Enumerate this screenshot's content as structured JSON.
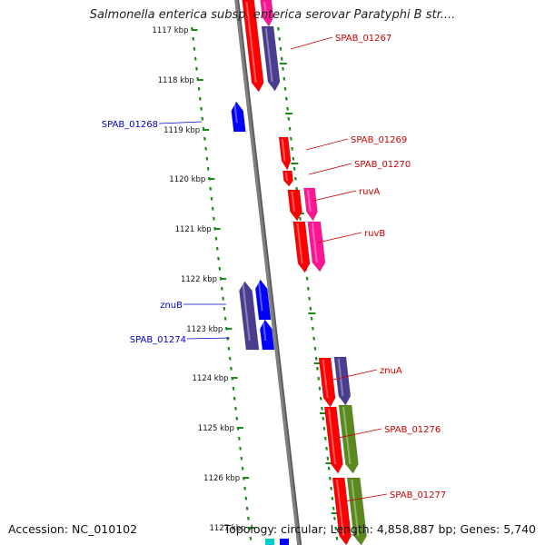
{
  "title": "Salmonella enterica subsp. enterica serovar Paratyphi B str....",
  "footer": {
    "accession": "Accession: NC_010102",
    "summary": "Topology: circular; Length: 4,858,887 bp; Genes: 5,740"
  },
  "colors": {
    "background": "#ffffff",
    "backbone": "#808080",
    "tick": "#1a8a1a",
    "fwd_label": "#cc0000",
    "rev_label": "#0000cc",
    "red": "#ff0000",
    "blue": "#0000ff",
    "purple": "#4a3d8f",
    "pink": "#ff1493",
    "olive": "#5a8a1e",
    "cyan": "#00cccc"
  },
  "kbp_ticks": [
    "1117 kbp",
    "1118 kbp",
    "1119 kbp",
    "1120 kbp",
    "1121 kbp",
    "1122 kbp",
    "1123 kbp",
    "1124 kbp",
    "1125 kbp",
    "1126 kbp",
    "1127 kbp"
  ],
  "gene_labels_forward": [
    "SPAB_01267",
    "SPAB_01269",
    "SPAB_01270",
    "ruvA",
    "ruvB",
    "znuA",
    "SPAB_01276",
    "SPAB_01277"
  ],
  "gene_labels_reverse": [
    "SPAB_01268",
    "znuB",
    "SPAB_01274"
  ]
}
